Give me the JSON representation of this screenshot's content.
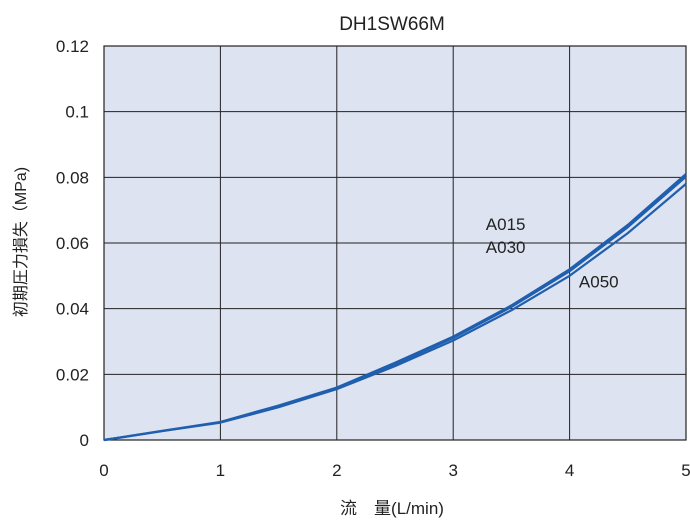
{
  "chart_data": {
    "type": "line",
    "title": "DH1SW66M",
    "xlabel": "流　量(L/min)",
    "ylabel": "初期圧力損失（MPa)",
    "xlim": [
      0,
      5
    ],
    "ylim": [
      0,
      0.12
    ],
    "x_ticks": [
      "0",
      "1",
      "2",
      "3",
      "4",
      "5"
    ],
    "y_ticks": [
      "0",
      "0.02",
      "0.04",
      "0.06",
      "0.08",
      "0.1",
      "0.12"
    ],
    "grid": true,
    "colors": {
      "plot_bg": "#dde3f0",
      "grid": "#222222",
      "line": "#1f5fae"
    },
    "series": [
      {
        "name": "A015",
        "x": [
          0,
          0.5,
          1,
          1.5,
          2,
          2.5,
          3,
          3.5,
          4,
          4.5,
          5
        ],
        "values": [
          0,
          0.0028,
          0.0055,
          0.0105,
          0.016,
          0.0235,
          0.0315,
          0.041,
          0.052,
          0.0655,
          0.081
        ]
      },
      {
        "name": "A030",
        "x": [
          0,
          0.5,
          1,
          1.5,
          2,
          2.5,
          3,
          3.5,
          4,
          4.5,
          5
        ],
        "values": [
          0,
          0.0027,
          0.0054,
          0.0103,
          0.0158,
          0.0231,
          0.0311,
          0.0405,
          0.0514,
          0.0648,
          0.0802
        ]
      },
      {
        "name": "A050",
        "x": [
          0,
          0.5,
          1,
          1.5,
          2,
          2.5,
          3,
          3.5,
          4,
          4.5,
          5
        ],
        "values": [
          0,
          0.0027,
          0.0053,
          0.01,
          0.0155,
          0.0225,
          0.0303,
          0.0395,
          0.05,
          0.063,
          0.078
        ]
      }
    ]
  }
}
